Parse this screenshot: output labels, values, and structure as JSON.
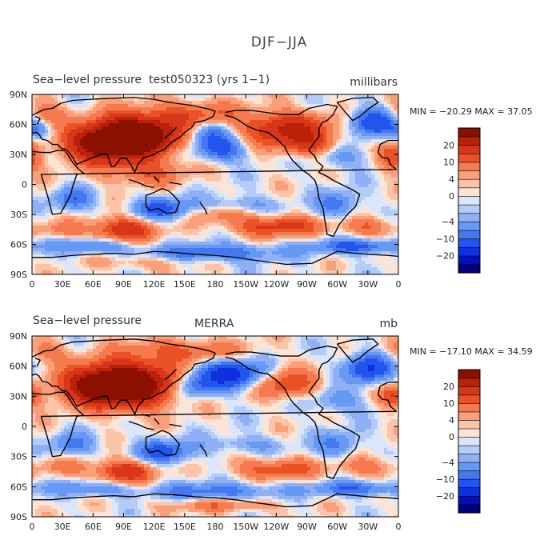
{
  "figure_title": "DJF−JJA",
  "palette": [
    "#000080",
    "#0010c0",
    "#1030e0",
    "#2255ee",
    "#4477f0",
    "#6699f5",
    "#8fb0f5",
    "#b5ccf8",
    "#dbe6fb",
    "#fde4d4",
    "#fbc4a8",
    "#f9a07a",
    "#f57a4e",
    "#ea5226",
    "#d8361a",
    "#bb2008",
    "#8c1000"
  ],
  "chart_data": [
    {
      "type": "heatmap",
      "title": "Sea−level pressure",
      "title_mid": "test050323 (yrs 1−1)",
      "units": "millibars",
      "stats": "MIN = −20.29 MAX =  37.05",
      "x_ticks": [
        "0",
        "30E",
        "60E",
        "90E",
        "120E",
        "150E",
        "180",
        "150W",
        "120W",
        "90W",
        "60W",
        "30W",
        "0"
      ],
      "y_ticks": [
        "90N",
        "60N",
        "30N",
        "0",
        "30S",
        "60S",
        "90S"
      ],
      "colorbar_labels": [
        "20",
        "10",
        "4",
        "0",
        "−4",
        "−10",
        "−20"
      ],
      "features": [
        {
          "lon": 100,
          "lat": 48,
          "amp": 34,
          "sx": 28,
          "sy": 14
        },
        {
          "lon": 65,
          "lat": 40,
          "amp": 18,
          "sx": 25,
          "sy": 12
        },
        {
          "lon": 110,
          "lat": 12,
          "amp": 7,
          "sx": 30,
          "sy": 9
        },
        {
          "lon": 160,
          "lat": 70,
          "amp": 8,
          "sx": 30,
          "sy": 10
        },
        {
          "lon": 250,
          "lat": 55,
          "amp": 16,
          "sx": 30,
          "sy": 12
        },
        {
          "lon": 275,
          "lat": 38,
          "amp": 9,
          "sx": 18,
          "sy": 9
        },
        {
          "lon": 10,
          "lat": 70,
          "amp": 7,
          "sx": 14,
          "sy": 10
        },
        {
          "lon": 355,
          "lat": 28,
          "amp": 10,
          "sx": 10,
          "sy": 10
        },
        {
          "lon": 90,
          "lat": -45,
          "amp": 14,
          "sx": 22,
          "sy": 8
        },
        {
          "lon": 240,
          "lat": -42,
          "amp": 12,
          "sx": 30,
          "sy": 7
        },
        {
          "lon": 330,
          "lat": -42,
          "amp": 7,
          "sx": 18,
          "sy": 7
        },
        {
          "lon": 180,
          "lat": -30,
          "amp": 5,
          "sx": 25,
          "sy": 6
        },
        {
          "lon": 30,
          "lat": -45,
          "amp": 5,
          "sx": 15,
          "sy": 6
        },
        {
          "lon": 185,
          "lat": 35,
          "amp": -12,
          "sx": 18,
          "sy": 8
        },
        {
          "lon": 175,
          "lat": 52,
          "amp": -9,
          "sx": 16,
          "sy": 8
        },
        {
          "lon": 335,
          "lat": 62,
          "amp": -14,
          "sx": 16,
          "sy": 10
        },
        {
          "lon": 5,
          "lat": 55,
          "amp": -8,
          "sx": 10,
          "sy": 7
        },
        {
          "lon": 300,
          "lat": 28,
          "amp": -6,
          "sx": 22,
          "sy": 8
        },
        {
          "lon": 40,
          "lat": -15,
          "amp": -9,
          "sx": 14,
          "sy": 8
        },
        {
          "lon": 130,
          "lat": -25,
          "amp": -12,
          "sx": 20,
          "sy": 8
        },
        {
          "lon": 205,
          "lat": -20,
          "amp": -5,
          "sx": 25,
          "sy": 6
        },
        {
          "lon": 300,
          "lat": -20,
          "amp": -9,
          "sx": 14,
          "sy": 9
        },
        {
          "lon": 180,
          "lat": -68,
          "amp": -10,
          "sx": 45,
          "sy": 6
        },
        {
          "lon": 320,
          "lat": -62,
          "amp": -12,
          "sx": 30,
          "sy": 5
        },
        {
          "lon": 60,
          "lat": -62,
          "amp": -8,
          "sx": 25,
          "sy": 5
        },
        {
          "lon": 110,
          "lat": -78,
          "amp": 4,
          "sx": 30,
          "sy": 5
        }
      ]
    },
    {
      "type": "heatmap",
      "title": "Sea−level pressure",
      "title_mid": "MERRA",
      "units": "mb",
      "stats": "MIN = −17.10 MAX =  34.59",
      "x_ticks": [
        "0",
        "30E",
        "60E",
        "90E",
        "120E",
        "150E",
        "180",
        "150W",
        "120W",
        "90W",
        "60W",
        "30W",
        "0"
      ],
      "y_ticks": [
        "90N",
        "60N",
        "30N",
        "0",
        "30S",
        "60S",
        "90S"
      ],
      "colorbar_labels": [
        "20",
        "10",
        "4",
        "0",
        "−4",
        "−10",
        "−20"
      ],
      "features": [
        {
          "lon": 95,
          "lat": 42,
          "amp": 30,
          "sx": 30,
          "sy": 15
        },
        {
          "lon": 60,
          "lat": 40,
          "amp": 16,
          "sx": 25,
          "sy": 12
        },
        {
          "lon": 150,
          "lat": 75,
          "amp": 8,
          "sx": 40,
          "sy": 8
        },
        {
          "lon": 250,
          "lat": 42,
          "amp": 10,
          "sx": 22,
          "sy": 10
        },
        {
          "lon": 355,
          "lat": 30,
          "amp": 10,
          "sx": 10,
          "sy": 8
        },
        {
          "lon": 10,
          "lat": 75,
          "amp": 6,
          "sx": 15,
          "sy": 8
        },
        {
          "lon": 90,
          "lat": -45,
          "amp": 14,
          "sx": 20,
          "sy": 8
        },
        {
          "lon": 240,
          "lat": -42,
          "amp": 9,
          "sx": 30,
          "sy": 7
        },
        {
          "lon": 330,
          "lat": -40,
          "amp": 6,
          "sx": 20,
          "sy": 7
        },
        {
          "lon": 30,
          "lat": -40,
          "amp": 5,
          "sx": 15,
          "sy": 6
        },
        {
          "lon": 185,
          "lat": -78,
          "amp": 6,
          "sx": 40,
          "sy": 5
        },
        {
          "lon": 195,
          "lat": 52,
          "amp": -18,
          "sx": 22,
          "sy": 10
        },
        {
          "lon": 160,
          "lat": 40,
          "amp": -9,
          "sx": 14,
          "sy": 8
        },
        {
          "lon": 330,
          "lat": 58,
          "amp": -15,
          "sx": 16,
          "sy": 10
        },
        {
          "lon": 300,
          "lat": 25,
          "amp": -6,
          "sx": 20,
          "sy": 8
        },
        {
          "lon": 40,
          "lat": -18,
          "amp": -8,
          "sx": 14,
          "sy": 8
        },
        {
          "lon": 130,
          "lat": -25,
          "amp": -12,
          "sx": 20,
          "sy": 8
        },
        {
          "lon": 210,
          "lat": -18,
          "amp": -5,
          "sx": 25,
          "sy": 6
        },
        {
          "lon": 300,
          "lat": -18,
          "amp": -8,
          "sx": 14,
          "sy": 9
        },
        {
          "lon": 180,
          "lat": -65,
          "amp": -9,
          "sx": 45,
          "sy": 6
        },
        {
          "lon": 60,
          "lat": -62,
          "amp": -7,
          "sx": 25,
          "sy": 5
        },
        {
          "lon": 320,
          "lat": -62,
          "amp": -10,
          "sx": 30,
          "sy": 5
        }
      ]
    }
  ]
}
